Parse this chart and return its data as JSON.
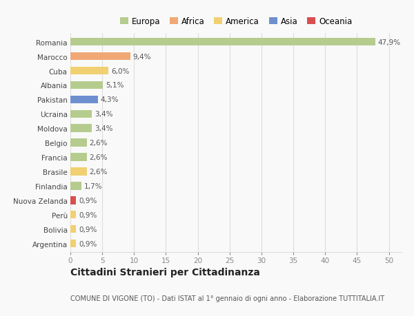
{
  "countries": [
    "Romania",
    "Marocco",
    "Cuba",
    "Albania",
    "Pakistan",
    "Ucraina",
    "Moldova",
    "Belgio",
    "Francia",
    "Brasile",
    "Finlandia",
    "Nuova Zelanda",
    "Perù",
    "Bolivia",
    "Argentina"
  ],
  "values": [
    47.9,
    9.4,
    6.0,
    5.1,
    4.3,
    3.4,
    3.4,
    2.6,
    2.6,
    2.6,
    1.7,
    0.9,
    0.9,
    0.9,
    0.9
  ],
  "labels": [
    "47,9%",
    "9,4%",
    "6,0%",
    "5,1%",
    "4,3%",
    "3,4%",
    "3,4%",
    "2,6%",
    "2,6%",
    "2,6%",
    "1,7%",
    "0,9%",
    "0,9%",
    "0,9%",
    "0,9%"
  ],
  "continent": [
    "Europa",
    "Africa",
    "America",
    "Europa",
    "Asia",
    "Europa",
    "Europa",
    "Europa",
    "Europa",
    "America",
    "Europa",
    "Oceania",
    "America",
    "America",
    "America"
  ],
  "continent_colors": {
    "Europa": "#b5cc8e",
    "Africa": "#f0a875",
    "America": "#f0d070",
    "Asia": "#6e8fcf",
    "Oceania": "#d94f4f"
  },
  "legend_items": [
    {
      "label": "Europa",
      "color": "#b5cc8e"
    },
    {
      "label": "Africa",
      "color": "#f0a875"
    },
    {
      "label": "America",
      "color": "#f0d070"
    },
    {
      "label": "Asia",
      "color": "#6e8fcf"
    },
    {
      "label": "Oceania",
      "color": "#d94f4f"
    }
  ],
  "xlim": [
    0,
    52
  ],
  "xticks": [
    0,
    5,
    10,
    15,
    20,
    25,
    30,
    35,
    40,
    45,
    50
  ],
  "title": "Cittadini Stranieri per Cittadinanza",
  "subtitle": "COMUNE DI VIGONE (TO) - Dati ISTAT al 1° gennaio di ogni anno - Elaborazione TUTTITALIA.IT",
  "background_color": "#f9f9f9",
  "grid_color": "#dddddd",
  "bar_height": 0.55,
  "label_fontsize": 7.5,
  "tick_fontsize": 7.5,
  "title_fontsize": 10,
  "subtitle_fontsize": 7,
  "legend_fontsize": 8.5
}
